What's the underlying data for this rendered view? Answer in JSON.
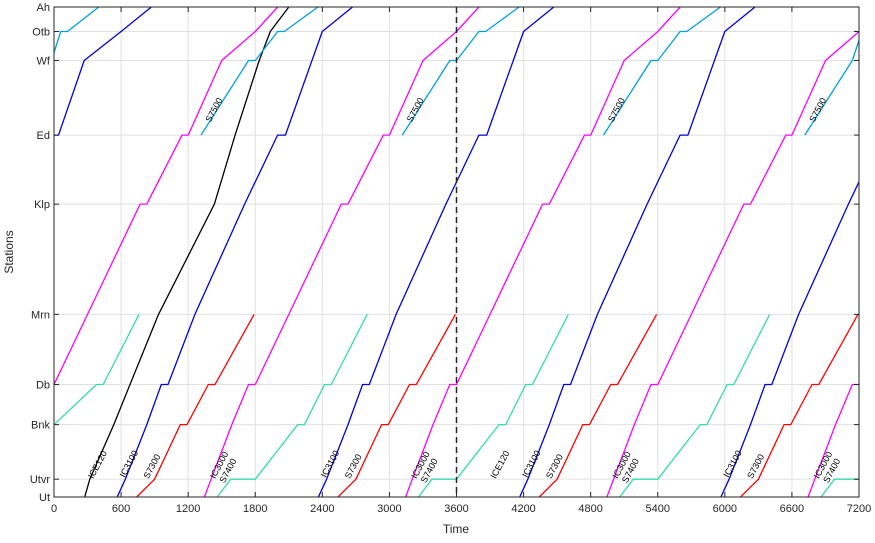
{
  "chart_data": {
    "type": "line",
    "title": "",
    "xlabel": "Time",
    "ylabel": "Stations",
    "xlim": [
      0,
      7200
    ],
    "ylim": [
      0,
      44
    ],
    "grid": true,
    "x_ticks": [
      0,
      600,
      1200,
      1800,
      2400,
      3000,
      3600,
      4200,
      4800,
      5400,
      6000,
      6600,
      7200
    ],
    "y_ticks": [
      {
        "label": "Ut",
        "value": 0
      },
      {
        "label": "Utvr",
        "value": 1.6
      },
      {
        "label": "Bnk",
        "value": 6.5
      },
      {
        "label": "Db",
        "value": 10.1
      },
      {
        "label": "Mrn",
        "value": 16.4
      },
      {
        "label": "Klp",
        "value": 26.3
      },
      {
        "label": "Ed",
        "value": 32.5
      },
      {
        "label": "Wf",
        "value": 39.2
      },
      {
        "label": "Otb",
        "value": 41.8
      },
      {
        "label": "Ah",
        "value": 44
      }
    ],
    "vline": {
      "x": 3600,
      "style": "dashed"
    },
    "colors": {
      "ICE120": "#000000",
      "IC3100": "#0000dd",
      "IC3000": "#ff00ff",
      "S7300": "#ff0000",
      "S7400": "#33ddaa",
      "S7500": "#00a0e0"
    },
    "series": [
      {
        "name": "ICE120",
        "color": "#000000",
        "segments": [
          [
            [
              275,
              0
            ],
            [
              320,
              1.6
            ],
            [
              535,
              6.5
            ],
            [
              680,
              10.1
            ],
            [
              935,
              16.4
            ],
            [
              1435,
              26.3
            ],
            [
              1620,
              32.5
            ],
            [
              1835,
              39.2
            ],
            [
              1935,
              41.8
            ],
            [
              2100,
              44
            ]
          ]
        ]
      },
      {
        "name": "IC3100",
        "color": "#0000dd",
        "segments": [
          [
            [
              -345,
              26.3
            ],
            [
              -30,
              32.5
            ],
            [
              40,
              32.5
            ],
            [
              270,
              39.2
            ],
            [
              600,
              41.8
            ],
            [
              870,
              44
            ]
          ],
          [
            [
              565,
              0
            ],
            [
              638,
              1.6
            ],
            [
              830,
              6.5
            ],
            [
              960,
              10.1
            ],
            [
              1020,
              10.1
            ],
            [
              1260,
              16.4
            ],
            [
              1705,
              26.3
            ],
            [
              2000,
              32.5
            ],
            [
              2070,
              32.5
            ],
            [
              2400,
              41.8
            ],
            [
              2670,
              44
            ]
          ],
          [
            [
              2365,
              0
            ],
            [
              2438,
              1.6
            ],
            [
              2630,
              6.5
            ],
            [
              2760,
              10.1
            ],
            [
              2820,
              10.1
            ],
            [
              3060,
              16.4
            ],
            [
              3505,
              26.3
            ],
            [
              3800,
              32.5
            ],
            [
              3870,
              32.5
            ],
            [
              4200,
              41.8
            ],
            [
              4470,
              44
            ]
          ],
          [
            [
              4165,
              0
            ],
            [
              4238,
              1.6
            ],
            [
              4430,
              6.5
            ],
            [
              4560,
              10.1
            ],
            [
              4620,
              10.1
            ],
            [
              4860,
              16.4
            ],
            [
              5305,
              26.3
            ],
            [
              5600,
              32.5
            ],
            [
              5670,
              32.5
            ],
            [
              6000,
              41.8
            ],
            [
              6270,
              44
            ]
          ],
          [
            [
              5965,
              0
            ],
            [
              6038,
              1.6
            ],
            [
              6230,
              6.5
            ],
            [
              6360,
              10.1
            ],
            [
              6420,
              10.1
            ],
            [
              6660,
              16.4
            ],
            [
              7105,
              26.3
            ],
            [
              7200,
              28.3
            ]
          ]
        ]
      },
      {
        "name": "IC3000",
        "color": "#ff00ff",
        "segments": [
          [
            [
              0,
              10.1
            ],
            [
              300,
              16.4
            ],
            [
              770,
              26.3
            ],
            [
              830,
              26.3
            ],
            [
              1145,
              32.5
            ],
            [
              1200,
              32.5
            ],
            [
              1500,
              39.2
            ],
            [
              1800,
              41.8
            ],
            [
              2000,
              44
            ]
          ],
          [
            [
              1345,
              0
            ],
            [
              1405,
              1.6
            ],
            [
              1590,
              6.5
            ],
            [
              1740,
              10.1
            ],
            [
              1800,
              10.1
            ],
            [
              2100,
              16.4
            ],
            [
              2570,
              26.3
            ],
            [
              2630,
              26.3
            ],
            [
              2945,
              32.5
            ],
            [
              3000,
              32.5
            ],
            [
              3300,
              39.2
            ],
            [
              3600,
              41.8
            ],
            [
              3800,
              44
            ]
          ],
          [
            [
              3145,
              0
            ],
            [
              3205,
              1.6
            ],
            [
              3390,
              6.5
            ],
            [
              3540,
              10.1
            ],
            [
              3600,
              10.1
            ],
            [
              3900,
              16.4
            ],
            [
              4370,
              26.3
            ],
            [
              4430,
              26.3
            ],
            [
              4745,
              32.5
            ],
            [
              4800,
              32.5
            ],
            [
              5100,
              39.2
            ],
            [
              5400,
              41.8
            ],
            [
              5600,
              44
            ]
          ],
          [
            [
              4945,
              0
            ],
            [
              5005,
              1.6
            ],
            [
              5190,
              6.5
            ],
            [
              5340,
              10.1
            ],
            [
              5400,
              10.1
            ],
            [
              5700,
              16.4
            ],
            [
              6170,
              26.3
            ],
            [
              6230,
              26.3
            ],
            [
              6545,
              32.5
            ],
            [
              6600,
              32.5
            ],
            [
              6900,
              39.2
            ],
            [
              7200,
              41.8
            ]
          ],
          [
            [
              6745,
              0
            ],
            [
              6805,
              1.6
            ],
            [
              6990,
              6.5
            ],
            [
              7140,
              10.1
            ],
            [
              7200,
              10.1
            ]
          ]
        ]
      },
      {
        "name": "S7300",
        "color": "#ff0000",
        "segments": [
          [
            [
              740,
              0
            ],
            [
              900,
              1.6
            ],
            [
              1130,
              6.5
            ],
            [
              1190,
              6.5
            ],
            [
              1380,
              10.1
            ],
            [
              1440,
              10.1
            ],
            [
              1790,
              16.4
            ]
          ],
          [
            [
              2540,
              0
            ],
            [
              2700,
              1.6
            ],
            [
              2930,
              6.5
            ],
            [
              2990,
              6.5
            ],
            [
              3180,
              10.1
            ],
            [
              3240,
              10.1
            ],
            [
              3590,
              16.4
            ]
          ],
          [
            [
              4340,
              0
            ],
            [
              4500,
              1.6
            ],
            [
              4730,
              6.5
            ],
            [
              4790,
              6.5
            ],
            [
              4980,
              10.1
            ],
            [
              5040,
              10.1
            ],
            [
              5390,
              16.4
            ]
          ],
          [
            [
              6140,
              0
            ],
            [
              6300,
              1.6
            ],
            [
              6530,
              6.5
            ],
            [
              6590,
              6.5
            ],
            [
              6780,
              10.1
            ],
            [
              6840,
              10.1
            ],
            [
              7190,
              16.4
            ]
          ]
        ]
      },
      {
        "name": "S7400",
        "color": "#33ddaa",
        "segments": [
          [
            [
              0,
              6.5
            ],
            [
              380,
              10.1
            ],
            [
              440,
              10.1
            ],
            [
              760,
              16.4
            ]
          ],
          [
            [
              1460,
              0
            ],
            [
              1580,
              1.6
            ],
            [
              1800,
              1.6
            ],
            [
              2180,
              6.5
            ],
            [
              2240,
              6.5
            ],
            [
              2420,
              10.1
            ],
            [
              2480,
              10.1
            ],
            [
              2800,
              16.4
            ]
          ],
          [
            [
              3260,
              0
            ],
            [
              3380,
              1.6
            ],
            [
              3600,
              1.6
            ],
            [
              3980,
              6.5
            ],
            [
              4040,
              6.5
            ],
            [
              4220,
              10.1
            ],
            [
              4280,
              10.1
            ],
            [
              4600,
              16.4
            ]
          ],
          [
            [
              5060,
              0
            ],
            [
              5180,
              1.6
            ],
            [
              5400,
              1.6
            ],
            [
              5780,
              6.5
            ],
            [
              5840,
              6.5
            ],
            [
              6020,
              10.1
            ],
            [
              6080,
              10.1
            ],
            [
              6400,
              16.4
            ]
          ],
          [
            [
              6860,
              0
            ],
            [
              6980,
              1.6
            ],
            [
              7200,
              1.6
            ]
          ]
        ]
      },
      {
        "name": "S7500",
        "color": "#00a0e0",
        "segments": [
          [
            [
              0,
              39.9
            ],
            [
              60,
              41.8
            ],
            [
              120,
              41.8
            ],
            [
              400,
              44
            ]
          ],
          [
            [
              1315,
              32.5
            ],
            [
              1740,
              39.2
            ],
            [
              1800,
              39.2
            ],
            [
              2000,
              41.8
            ],
            [
              2060,
              41.8
            ],
            [
              2360,
              44
            ]
          ],
          [
            [
              3115,
              32.5
            ],
            [
              3540,
              39.2
            ],
            [
              3600,
              39.2
            ],
            [
              3800,
              41.8
            ],
            [
              3860,
              41.8
            ],
            [
              4160,
              44
            ]
          ],
          [
            [
              4915,
              32.5
            ],
            [
              5340,
              39.2
            ],
            [
              5400,
              39.2
            ],
            [
              5600,
              41.8
            ],
            [
              5660,
              41.8
            ],
            [
              5960,
              44
            ]
          ],
          [
            [
              6715,
              32.5
            ],
            [
              7140,
              39.2
            ],
            [
              7200,
              41
            ]
          ]
        ]
      }
    ],
    "annotations": [
      {
        "text": "ICE120",
        "x": 350,
        "y": 1.6
      },
      {
        "text": "IC3100",
        "x": 632,
        "y": 1.7
      },
      {
        "text": "S7300",
        "x": 845,
        "y": 1.6
      },
      {
        "text": "IC3000",
        "x": 1440,
        "y": 1.6
      },
      {
        "text": "S7400",
        "x": 1525,
        "y": 1.2
      },
      {
        "text": "IC3100",
        "x": 2432,
        "y": 1.7
      },
      {
        "text": "S7300",
        "x": 2645,
        "y": 1.6
      },
      {
        "text": "IC3000",
        "x": 3240,
        "y": 1.6
      },
      {
        "text": "S7400",
        "x": 3325,
        "y": 1.2
      },
      {
        "text": "ICE120",
        "x": 3950,
        "y": 1.6
      },
      {
        "text": "IC3100",
        "x": 4232,
        "y": 1.7
      },
      {
        "text": "S7300",
        "x": 4445,
        "y": 1.6
      },
      {
        "text": "IC3000",
        "x": 5040,
        "y": 1.6
      },
      {
        "text": "S7400",
        "x": 5125,
        "y": 1.2
      },
      {
        "text": "IC3100",
        "x": 6032,
        "y": 1.7
      },
      {
        "text": "S7300",
        "x": 6245,
        "y": 1.6
      },
      {
        "text": "IC3000",
        "x": 6840,
        "y": 1.6
      },
      {
        "text": "S7400",
        "x": 6925,
        "y": 1.2
      },
      {
        "text": "S7500",
        "x": 1400,
        "y": 33.6
      },
      {
        "text": "S7500",
        "x": 3200,
        "y": 33.6
      },
      {
        "text": "S7500",
        "x": 5000,
        "y": 33.6
      },
      {
        "text": "S7500",
        "x": 6800,
        "y": 33.6
      }
    ]
  }
}
